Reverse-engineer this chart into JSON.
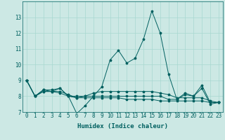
{
  "xlabel": "Humidex (Indice chaleur)",
  "ylabel": "",
  "background_color": "#cce8e4",
  "line_color": "#006060",
  "grid_color": "#a8d8d0",
  "x": [
    0,
    1,
    2,
    3,
    4,
    5,
    6,
    7,
    8,
    9,
    10,
    11,
    12,
    13,
    14,
    15,
    16,
    17,
    18,
    19,
    20,
    21,
    22,
    23
  ],
  "series": [
    [
      9.0,
      8.0,
      8.4,
      8.4,
      8.5,
      8.0,
      6.9,
      7.4,
      8.0,
      8.6,
      10.3,
      10.9,
      10.1,
      10.4,
      11.6,
      13.4,
      12.0,
      9.4,
      7.8,
      8.1,
      8.0,
      8.7,
      7.6,
      7.6
    ],
    [
      9.0,
      8.0,
      8.4,
      8.3,
      8.5,
      8.0,
      7.9,
      8.0,
      8.2,
      8.3,
      8.3,
      8.3,
      8.3,
      8.3,
      8.3,
      8.3,
      8.2,
      8.1,
      7.9,
      7.9,
      7.9,
      7.9,
      7.7,
      7.6
    ],
    [
      9.0,
      8.0,
      8.3,
      8.3,
      8.3,
      8.1,
      7.9,
      7.9,
      7.9,
      7.9,
      7.9,
      7.9,
      7.8,
      7.8,
      7.8,
      7.8,
      7.7,
      7.7,
      7.7,
      7.7,
      7.7,
      7.7,
      7.6,
      7.6
    ],
    [
      9.0,
      8.0,
      8.3,
      8.3,
      8.2,
      8.0,
      8.0,
      8.0,
      8.0,
      8.0,
      8.0,
      8.0,
      8.0,
      8.0,
      8.0,
      8.0,
      8.0,
      7.8,
      7.8,
      8.2,
      8.0,
      8.5,
      7.5,
      7.6
    ]
  ],
  "ylim": [
    7,
    14
  ],
  "yticks": [
    7,
    8,
    9,
    10,
    11,
    12,
    13
  ],
  "xlim": [
    -0.5,
    23.5
  ],
  "tick_fontsize": 5.5,
  "xlabel_fontsize": 6.5,
  "marker_size": 2.5,
  "linewidth": 0.7
}
